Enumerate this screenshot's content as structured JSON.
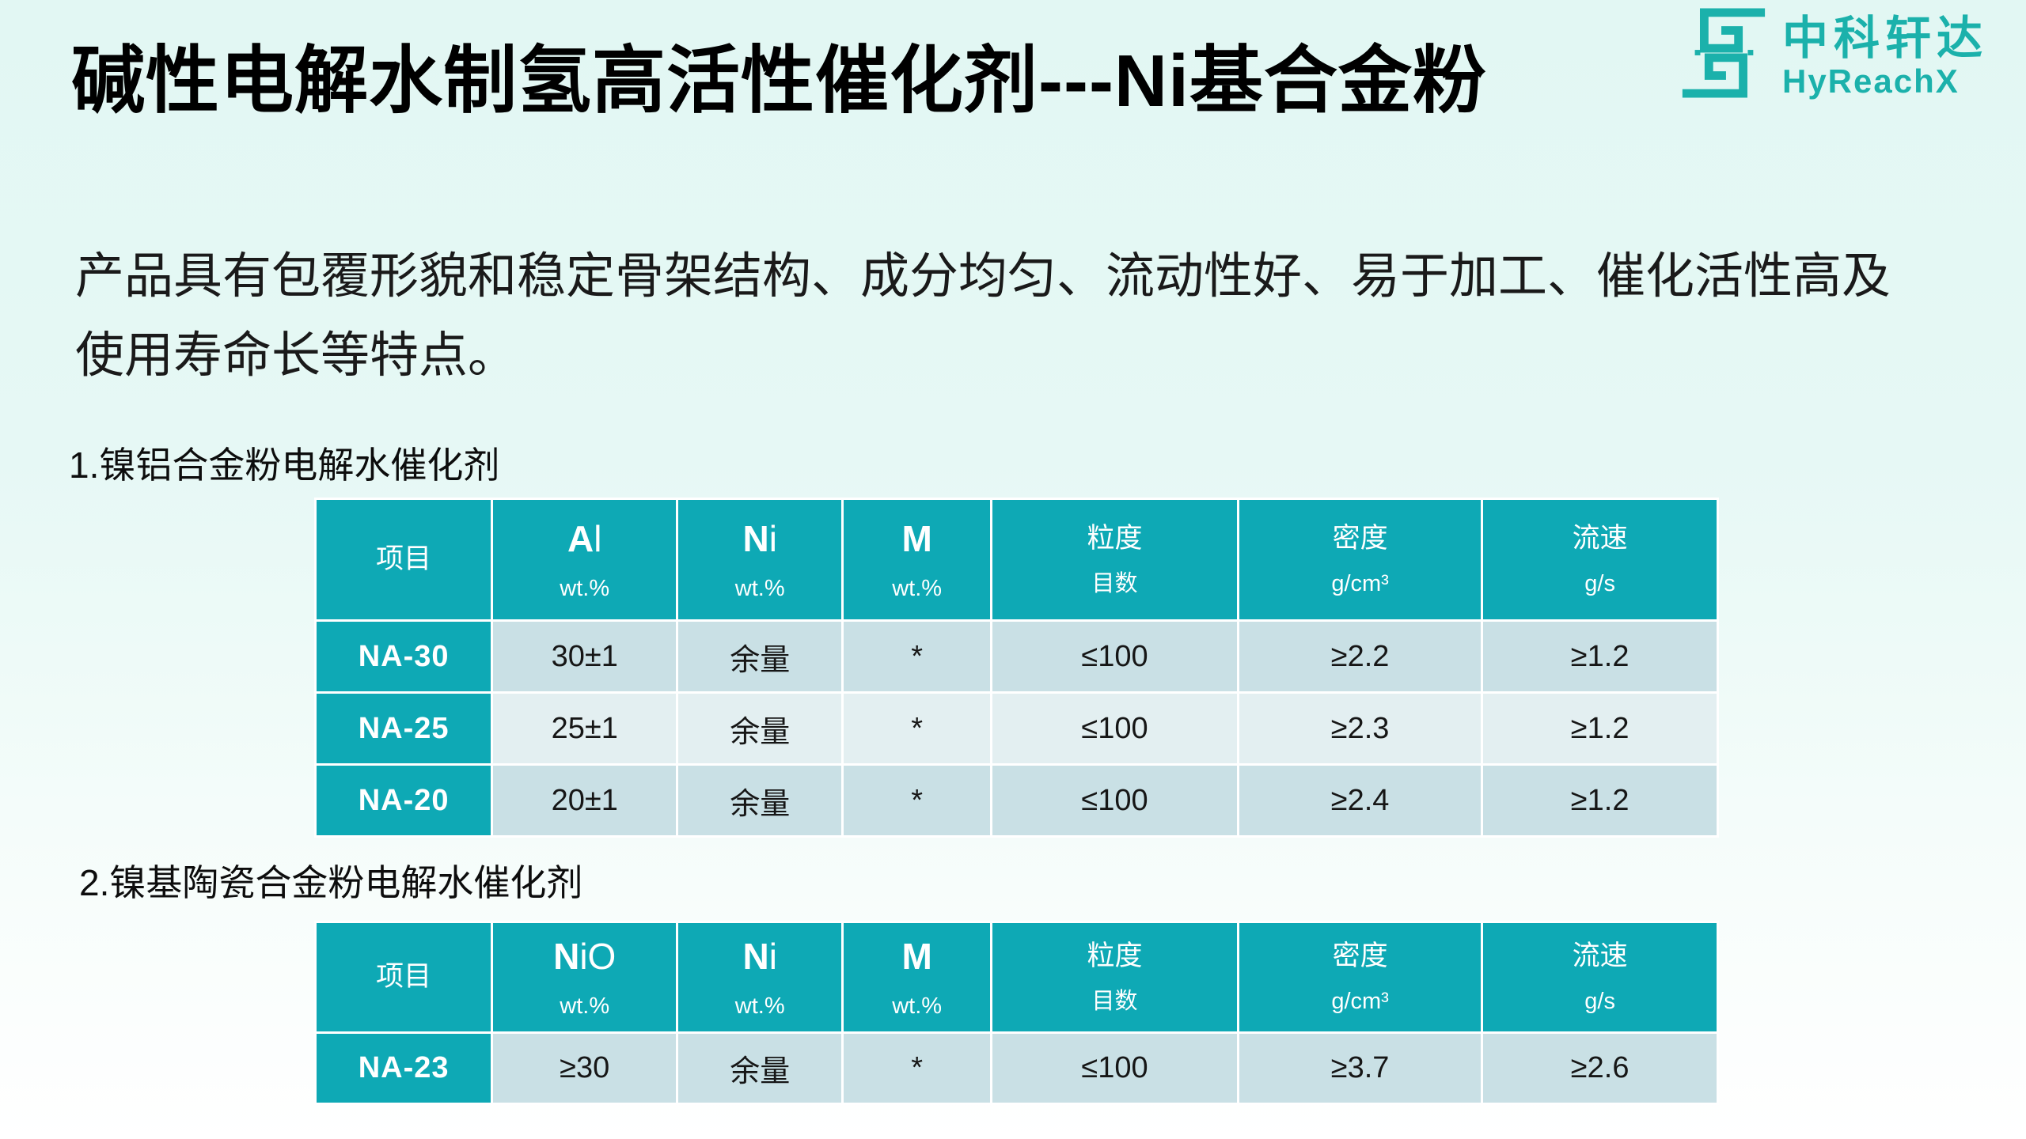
{
  "page": {
    "title": "碱性电解水制氢高活性催化剂---Ni基合金粉"
  },
  "logo": {
    "name_cn": "中科轩达",
    "name_en": "HyReachX"
  },
  "colors": {
    "brand_teal": "#1bb1ab",
    "table_header_teal": "#0ea9b5",
    "row_dark": "#c9e0e5",
    "row_light": "#e3eff1"
  },
  "intro": {
    "lines": [
      "产品具有包覆形貌和稳定骨架结构、成分均匀、流动性好、易于加工、催化活性高及",
      "使用寿命长等特点。"
    ]
  },
  "section1": {
    "label": "1.镍铝合金粉电解水催化剂",
    "table": {
      "headers": [
        {
          "line1": "项目",
          "line2": ""
        },
        {
          "line1": "Al",
          "line2": "wt.%"
        },
        {
          "line1": "Ni",
          "line2": "wt.%"
        },
        {
          "line1": "M",
          "line2": "wt.%"
        },
        {
          "line1": "粒度",
          "line2": "目数"
        },
        {
          "line1": "密度",
          "line2": "g/cm³"
        },
        {
          "line1": "流速",
          "line2": "g/s"
        }
      ],
      "rows": [
        {
          "item": "NA-30",
          "values": [
            "30±1",
            "余量",
            "*",
            "≤100",
            "≥2.2",
            "≥1.2"
          ]
        },
        {
          "item": "NA-25",
          "values": [
            "25±1",
            "余量",
            "*",
            "≤100",
            "≥2.3",
            "≥1.2"
          ]
        },
        {
          "item": "NA-20",
          "values": [
            "20±1",
            "余量",
            "*",
            "≤100",
            "≥2.4",
            "≥1.2"
          ]
        }
      ]
    }
  },
  "section2": {
    "label": "2.镍基陶瓷合金粉电解水催化剂",
    "table": {
      "headers": [
        {
          "line1": "项目",
          "line2": ""
        },
        {
          "line1": "NiO",
          "line2": "wt.%"
        },
        {
          "line1": "Ni",
          "line2": "wt.%"
        },
        {
          "line1": "M",
          "line2": "wt.%"
        },
        {
          "line1": "粒度",
          "line2": "目数"
        },
        {
          "line1": "密度",
          "line2": "g/cm³"
        },
        {
          "line1": "流速",
          "line2": "g/s"
        }
      ],
      "rows": [
        {
          "item": "NA-23",
          "values": [
            "≥30",
            "余量",
            "*",
            "≤100",
            "≥3.7",
            "≥2.6"
          ]
        }
      ]
    }
  }
}
